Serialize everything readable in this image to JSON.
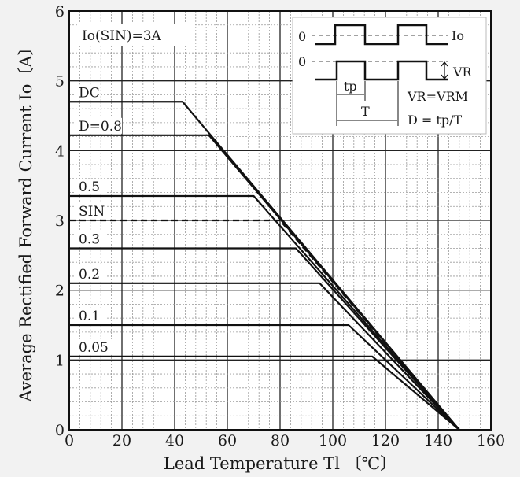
{
  "chart_data": {
    "type": "line",
    "title": "",
    "xlabel": "Lead Temperature  Tl 〔℃〕",
    "ylabel": "Average Rectified Forward Current  Io〔A〕",
    "xlim": [
      0,
      160
    ],
    "ylim": [
      0,
      6
    ],
    "x_ticks": [
      0,
      20,
      40,
      60,
      80,
      100,
      120,
      140,
      160
    ],
    "y_ticks": [
      0,
      1,
      2,
      3,
      4,
      5,
      6
    ],
    "x_tick_labels": [
      "0",
      "20",
      "40",
      "60",
      "80",
      "100",
      "120",
      "140",
      "160"
    ],
    "y_tick_labels": [
      "0",
      "1",
      "2",
      "3",
      "4",
      "5",
      "6"
    ],
    "grid": true,
    "annotation": "Io(SIN)=3A",
    "series": [
      {
        "name": "DC",
        "style": "solid",
        "x": [
          0,
          43,
          148
        ],
        "y": [
          4.7,
          4.7,
          0
        ]
      },
      {
        "name": "D=0.8",
        "style": "solid",
        "x": [
          0,
          53,
          148
        ],
        "y": [
          4.22,
          4.22,
          0
        ]
      },
      {
        "name": "0.5",
        "style": "solid",
        "x": [
          0,
          70,
          148
        ],
        "y": [
          3.35,
          3.35,
          0
        ]
      },
      {
        "name": "SIN",
        "style": "dashed",
        "x": [
          0,
          80,
          148
        ],
        "y": [
          3.0,
          3.0,
          0
        ]
      },
      {
        "name": "0.3",
        "style": "solid",
        "x": [
          0,
          86,
          148
        ],
        "y": [
          2.6,
          2.6,
          0
        ]
      },
      {
        "name": "0.2",
        "style": "solid",
        "x": [
          0,
          95,
          148
        ],
        "y": [
          2.1,
          2.1,
          0
        ]
      },
      {
        "name": "0.1",
        "style": "solid",
        "x": [
          0,
          106,
          148
        ],
        "y": [
          1.5,
          1.5,
          0
        ]
      },
      {
        "name": "0.05",
        "style": "solid",
        "x": [
          0,
          115,
          148
        ],
        "y": [
          1.05,
          1.05,
          0
        ]
      }
    ],
    "inset": {
      "zero_top": "0",
      "zero_bottom": "0",
      "io_label": "Io",
      "vr_label": "VR",
      "tp_label": "tp",
      "t_label": "T",
      "formula_vr": "VR=VRM",
      "formula_d": "D = tp/T"
    }
  }
}
